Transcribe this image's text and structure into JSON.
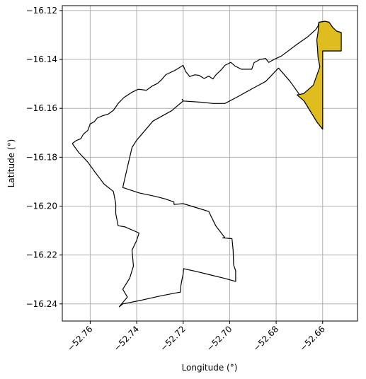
{
  "chart_data": {
    "type": "map",
    "xlabel": "Longitude (°)",
    "ylabel": "Latitude (°)",
    "xlim": [
      -52.772,
      -52.645
    ],
    "ylim": [
      -16.247,
      -16.118
    ],
    "grid": true,
    "x_ticks": [
      {
        "value": -52.76,
        "label": "−52.76"
      },
      {
        "value": -52.74,
        "label": "−52.74"
      },
      {
        "value": -52.72,
        "label": "−52.72"
      },
      {
        "value": -52.7,
        "label": "−52.70"
      },
      {
        "value": -52.68,
        "label": "−52.68"
      },
      {
        "value": -52.66,
        "label": "−52.66"
      }
    ],
    "y_ticks": [
      {
        "value": -16.12,
        "label": "−16.12"
      },
      {
        "value": -16.14,
        "label": "−16.14"
      },
      {
        "value": -16.16,
        "label": "−16.16"
      },
      {
        "value": -16.18,
        "label": "−16.18"
      },
      {
        "value": -16.2,
        "label": "−16.20"
      },
      {
        "value": -16.22,
        "label": "−16.22"
      },
      {
        "value": -16.24,
        "label": "−16.24"
      }
    ],
    "regions": [
      {
        "id": "outer-boundary",
        "fill": "none",
        "stroke": "#000000",
        "coordinates": [
          [
            -52.7677,
            -16.1744
          ],
          [
            -52.766,
            -16.1732
          ],
          [
            -52.764,
            -16.1724
          ],
          [
            -52.763,
            -16.1706
          ],
          [
            -52.761,
            -16.169
          ],
          [
            -52.76,
            -16.1664
          ],
          [
            -52.7583,
            -16.1655
          ],
          [
            -52.757,
            -16.164
          ],
          [
            -52.7546,
            -16.163
          ],
          [
            -52.7523,
            -16.1624
          ],
          [
            -52.75,
            -16.1608
          ],
          [
            -52.7478,
            -16.1578
          ],
          [
            -52.7455,
            -16.1556
          ],
          [
            -52.742,
            -16.1534
          ],
          [
            -52.7393,
            -16.1522
          ],
          [
            -52.7358,
            -16.1526
          ],
          [
            -52.7332,
            -16.1508
          ],
          [
            -52.731,
            -16.1498
          ],
          [
            -52.7292,
            -16.1482
          ],
          [
            -52.7274,
            -16.1462
          ],
          [
            -52.7234,
            -16.1444
          ],
          [
            -52.72,
            -16.1424
          ],
          [
            -52.719,
            -16.1448
          ],
          [
            -52.7172,
            -16.147
          ],
          [
            -52.715,
            -16.1463
          ],
          [
            -52.7132,
            -16.1465
          ],
          [
            -52.711,
            -16.1478
          ],
          [
            -52.709,
            -16.1468
          ],
          [
            -52.7072,
            -16.148
          ],
          [
            -52.706,
            -16.1464
          ],
          [
            -52.7034,
            -16.144
          ],
          [
            -52.702,
            -16.1424
          ],
          [
            -52.6995,
            -16.1412
          ],
          [
            -52.6978,
            -16.1426
          ],
          [
            -52.695,
            -16.144
          ],
          [
            -52.6924,
            -16.144
          ],
          [
            -52.6905,
            -16.144
          ],
          [
            -52.6895,
            -16.1413
          ],
          [
            -52.687,
            -16.14
          ],
          [
            -52.6845,
            -16.1396
          ],
          [
            -52.6832,
            -16.1412
          ],
          [
            -52.6805,
            -16.1398
          ],
          [
            -52.6777,
            -16.1386
          ],
          [
            -52.671,
            -16.1338
          ],
          [
            -52.6665,
            -16.1308
          ],
          [
            -52.663,
            -16.1278
          ],
          [
            -52.662,
            -16.1264
          ],
          [
            -52.6616,
            -16.1248
          ],
          [
            -52.659,
            -16.1244
          ],
          [
            -52.6572,
            -16.1248
          ],
          [
            -52.6556,
            -16.127
          ],
          [
            -52.654,
            -16.1284
          ],
          [
            -52.652,
            -16.129
          ],
          [
            -52.652,
            -16.134
          ],
          [
            -52.652,
            -16.1365
          ],
          [
            -52.656,
            -16.1365
          ],
          [
            -52.66,
            -16.1365
          ],
          [
            -52.66,
            -16.153
          ],
          [
            -52.66,
            -16.1685
          ],
          [
            -52.6625,
            -16.1655
          ],
          [
            -52.668,
            -16.157
          ],
          [
            -52.674,
            -16.149
          ],
          [
            -52.679,
            -16.1435
          ],
          [
            -52.6845,
            -16.149
          ],
          [
            -52.69,
            -16.1518
          ],
          [
            -52.696,
            -16.155
          ],
          [
            -52.702,
            -16.158
          ],
          [
            -52.7072,
            -16.158
          ],
          [
            -52.712,
            -16.1575
          ],
          [
            -52.72,
            -16.157
          ],
          [
            -52.725,
            -16.161
          ],
          [
            -52.733,
            -16.1652
          ],
          [
            -52.74,
            -16.173
          ],
          [
            -52.742,
            -16.176
          ],
          [
            -52.744,
            -16.1842
          ],
          [
            -52.746,
            -16.1924
          ],
          [
            -52.739,
            -16.1946
          ],
          [
            -52.732,
            -16.196
          ],
          [
            -52.728,
            -16.197
          ],
          [
            -52.724,
            -16.1983
          ],
          [
            -52.7239,
            -16.1993
          ],
          [
            -52.72,
            -16.199
          ],
          [
            -52.713,
            -16.201
          ],
          [
            -52.709,
            -16.2022
          ],
          [
            -52.706,
            -16.208
          ],
          [
            -52.702,
            -16.213
          ],
          [
            -52.703,
            -16.213
          ],
          [
            -52.699,
            -16.2133
          ],
          [
            -52.6985,
            -16.218
          ],
          [
            -52.6983,
            -16.224
          ],
          [
            -52.6974,
            -16.2265
          ],
          [
            -52.6974,
            -16.2308
          ],
          [
            -52.702,
            -16.2296
          ],
          [
            -52.708,
            -16.2282
          ],
          [
            -52.714,
            -16.2268
          ],
          [
            -52.7198,
            -16.2256
          ],
          [
            -52.72,
            -16.2278
          ],
          [
            -52.7205,
            -16.23
          ],
          [
            -52.721,
            -16.2325
          ],
          [
            -52.7212,
            -16.2352
          ],
          [
            -52.723,
            -16.2355
          ],
          [
            -52.73,
            -16.2368
          ],
          [
            -52.738,
            -16.2385
          ],
          [
            -52.746,
            -16.24
          ],
          [
            -52.7475,
            -16.2412
          ],
          [
            -52.744,
            -16.2372
          ],
          [
            -52.746,
            -16.234
          ],
          [
            -52.743,
            -16.2295
          ],
          [
            -52.7414,
            -16.2245
          ],
          [
            -52.742,
            -16.218
          ],
          [
            -52.74,
            -16.214
          ],
          [
            -52.739,
            -16.211
          ],
          [
            -52.745,
            -16.2085
          ],
          [
            -52.748,
            -16.208
          ],
          [
            -52.749,
            -16.203
          ],
          [
            -52.749,
            -16.199
          ],
          [
            -52.75,
            -16.194
          ],
          [
            -52.754,
            -16.191
          ],
          [
            -52.758,
            -16.186
          ],
          [
            -52.761,
            -16.182
          ],
          [
            -52.765,
            -16.178
          ],
          [
            -52.7677,
            -16.1744
          ]
        ]
      },
      {
        "id": "inner-division",
        "fill": "none",
        "stroke": "#000000",
        "coordinates": [
          [
            -52.72,
            -16.157
          ],
          [
            -52.7205,
            -16.1562
          ]
        ]
      },
      {
        "id": "highlighted-district",
        "fill": "#dfbd1e",
        "stroke": "#000000",
        "coordinates": [
          [
            -52.6616,
            -16.1248
          ],
          [
            -52.659,
            -16.1244
          ],
          [
            -52.6572,
            -16.1248
          ],
          [
            -52.6556,
            -16.127
          ],
          [
            -52.654,
            -16.1284
          ],
          [
            -52.652,
            -16.129
          ],
          [
            -52.652,
            -16.1365
          ],
          [
            -52.656,
            -16.1365
          ],
          [
            -52.66,
            -16.1365
          ],
          [
            -52.66,
            -16.153
          ],
          [
            -52.66,
            -16.1685
          ],
          [
            -52.6625,
            -16.1655
          ],
          [
            -52.668,
            -16.157
          ],
          [
            -52.671,
            -16.1545
          ],
          [
            -52.6682,
            -16.154
          ],
          [
            -52.664,
            -16.1505
          ],
          [
            -52.6612,
            -16.143
          ],
          [
            -52.662,
            -16.139
          ],
          [
            -52.6622,
            -16.1355
          ],
          [
            -52.6625,
            -16.132
          ],
          [
            -52.662,
            -16.129
          ],
          [
            -52.6616,
            -16.1248
          ]
        ]
      }
    ]
  }
}
